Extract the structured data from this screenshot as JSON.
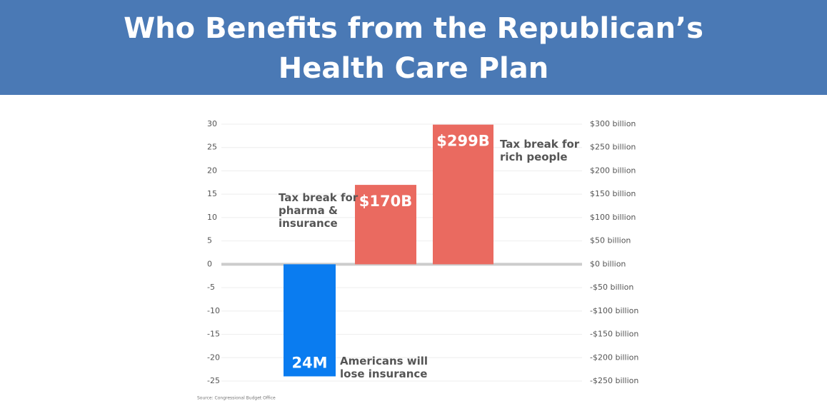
{
  "chart_data": {
    "type": "bar",
    "title": "Who Benefits from the Republican’s Health Care Plan",
    "categories": [
      null,
      null,
      null
    ],
    "series": [
      {
        "color": "#0a7cf0",
        "values": [
          -24,
          null,
          null
        ],
        "value_labels": [
          "24M",
          null,
          null
        ]
      },
      {
        "color": "#ea6a60",
        "axis": "y2",
        "values": [
          null,
          170,
          299
        ],
        "value_labels": [
          null,
          "$170B",
          "$299B"
        ]
      }
    ],
    "annotations": [
      "Americans will lose insurance",
      "Tax break for pharma & insurance",
      "Tax break for rich people"
    ],
    "source": "Source: Congressional Budget Office",
    "ylim": [
      -25,
      30
    ],
    "yticks": [
      30,
      25,
      20,
      15,
      10,
      5,
      0,
      -5,
      -10,
      -15,
      -20,
      -25
    ],
    "y2lim": [
      -250,
      300
    ],
    "y2ticks": [
      {
        "value": 300,
        "label": "$300 billion"
      },
      {
        "value": 250,
        "label": "$250 billion"
      },
      {
        "value": 200,
        "label": "$200 billion"
      },
      {
        "value": 150,
        "label": "$150 billion"
      },
      {
        "value": 100,
        "label": "$100 billion"
      },
      {
        "value": 50,
        "label": "$50 billion"
      },
      {
        "value": 0,
        "label": "$0 billion"
      },
      {
        "value": -50,
        "label": "-$50 billion"
      },
      {
        "value": -100,
        "label": "-$100 billion"
      },
      {
        "value": -150,
        "label": "-$150 billion"
      },
      {
        "value": -200,
        "label": "-$200 billion"
      },
      {
        "value": -250,
        "label": "-$250 billion"
      }
    ],
    "grid": true
  }
}
